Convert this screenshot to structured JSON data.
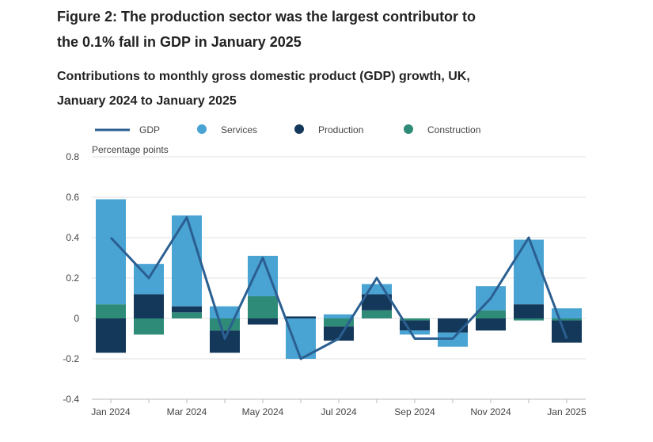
{
  "chart_data": {
    "type": "stacked_bar_line",
    "title": "Figure 2: The production sector was the largest contributor to the 0.1% fall in GDP in January 2025",
    "subtitle": "Contributions to monthly gross domestic product (GDP) growth, UK, January 2024 to January 2025",
    "y_label": "Percentage points",
    "categories": [
      "Jan 2024",
      null,
      "Mar 2024",
      null,
      "May 2024",
      null,
      "Jul 2024",
      null,
      "Sep 2024",
      null,
      "Nov 2024",
      null,
      "Jan 2025"
    ],
    "series": [
      {
        "name": "GDP",
        "type": "line",
        "color": "#2b5f91",
        "values": [
          0.4,
          0.2,
          0.5,
          -0.1,
          0.3,
          -0.2,
          -0.1,
          0.2,
          -0.1,
          -0.1,
          0.1,
          0.4,
          -0.1
        ]
      },
      {
        "name": "Services",
        "type": "bar",
        "color": "#49a3d3",
        "values": [
          0.52,
          0.15,
          0.45,
          0.06,
          0.2,
          -0.2,
          0.02,
          0.05,
          -0.02,
          -0.07,
          0.12,
          0.32,
          0.05
        ]
      },
      {
        "name": "Production",
        "type": "bar",
        "color": "#13385a",
        "values": [
          -0.17,
          0.12,
          0.03,
          -0.11,
          -0.03,
          0.01,
          -0.07,
          0.08,
          -0.05,
          -0.07,
          -0.06,
          0.07,
          -0.11
        ]
      },
      {
        "name": "Construction",
        "type": "bar",
        "color": "#2e8b78",
        "values": [
          0.07,
          -0.08,
          0.03,
          -0.06,
          0.11,
          0,
          -0.04,
          0.04,
          -0.01,
          0,
          0.04,
          -0.01,
          -0.01
        ]
      }
    ],
    "ylim": [
      -0.4,
      0.8
    ],
    "yticks": [
      -0.4,
      -0.2,
      0,
      0.2,
      0.4,
      0.6,
      0.8
    ],
    "grid": true
  }
}
